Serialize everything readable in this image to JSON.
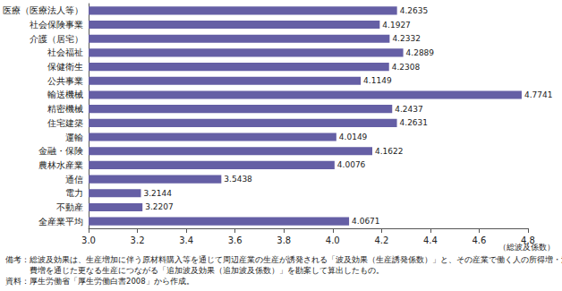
{
  "chart_data": {
    "type": "bar",
    "orientation": "horizontal",
    "categories": [
      "医療（医療法人等）",
      "社会保険事業",
      "介護（居宅）",
      "社会福祉",
      "保健衛生",
      "公共事業",
      "輸送機械",
      "精密機械",
      "住宅建築",
      "運輸",
      "金融・保険",
      "農林水産業",
      "通信",
      "電力",
      "不動産",
      "全産業平均"
    ],
    "values": [
      4.2635,
      4.1927,
      4.2332,
      4.2889,
      4.2308,
      4.1149,
      4.7741,
      4.2437,
      4.2631,
      4.0149,
      4.1622,
      4.0076,
      3.5438,
      3.2144,
      3.2207,
      4.0671
    ],
    "color": "#655fa5",
    "xlabel": "（総波及係数）",
    "xlim": [
      3,
      4.8
    ],
    "xticks": [
      {
        "value": 3,
        "label": "3.0"
      },
      3.2,
      3.4,
      3.6,
      3.8,
      {
        "value": 4,
        "label": "4.0"
      },
      4.2,
      4.4,
      4.6,
      4.8
    ],
    "grid": false,
    "data_labels": true,
    "annotations": [
      "備考：総波及効果は、生産増加に伴う原材料購入等を通じて周辺産業の生産が誘発される「波及効果（生産誘発係数）」と、その産業で働く人の所得増・消",
      "　　　費増を通じた更なる生産につながる「追加波及効果（追加波及係数）」を勘案して算出したもの。",
      "資料：厚生労働省「厚生労働白書2008」から作成。"
    ]
  }
}
